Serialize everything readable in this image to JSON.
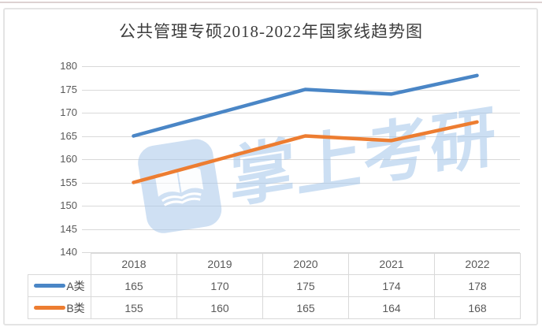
{
  "chart_data": {
    "type": "line",
    "title": "公共管理专硕2018-2022年国家线趋势图",
    "categories": [
      "2018",
      "2019",
      "2020",
      "2021",
      "2022"
    ],
    "series": [
      {
        "name": "A类",
        "color": "#4a86c6",
        "values": [
          165,
          170,
          175,
          174,
          178
        ]
      },
      {
        "name": "B类",
        "color": "#ed7d31",
        "values": [
          155,
          160,
          165,
          164,
          168
        ]
      }
    ],
    "ylim": [
      140,
      180
    ],
    "yticks": [
      140,
      145,
      150,
      155,
      160,
      165,
      170,
      175,
      180
    ],
    "xlabel": "",
    "ylabel": "",
    "grid": true,
    "legend_position": "data-table-left",
    "data_table_shown": true
  },
  "watermark": {
    "text": "掌上考研",
    "icon": "open-book-app-icon",
    "color": "#a4c6ea"
  },
  "frame": {
    "border_color": "#e4e4e4",
    "grid_color": "#d9d9d9",
    "axis_text_color": "#595959"
  }
}
